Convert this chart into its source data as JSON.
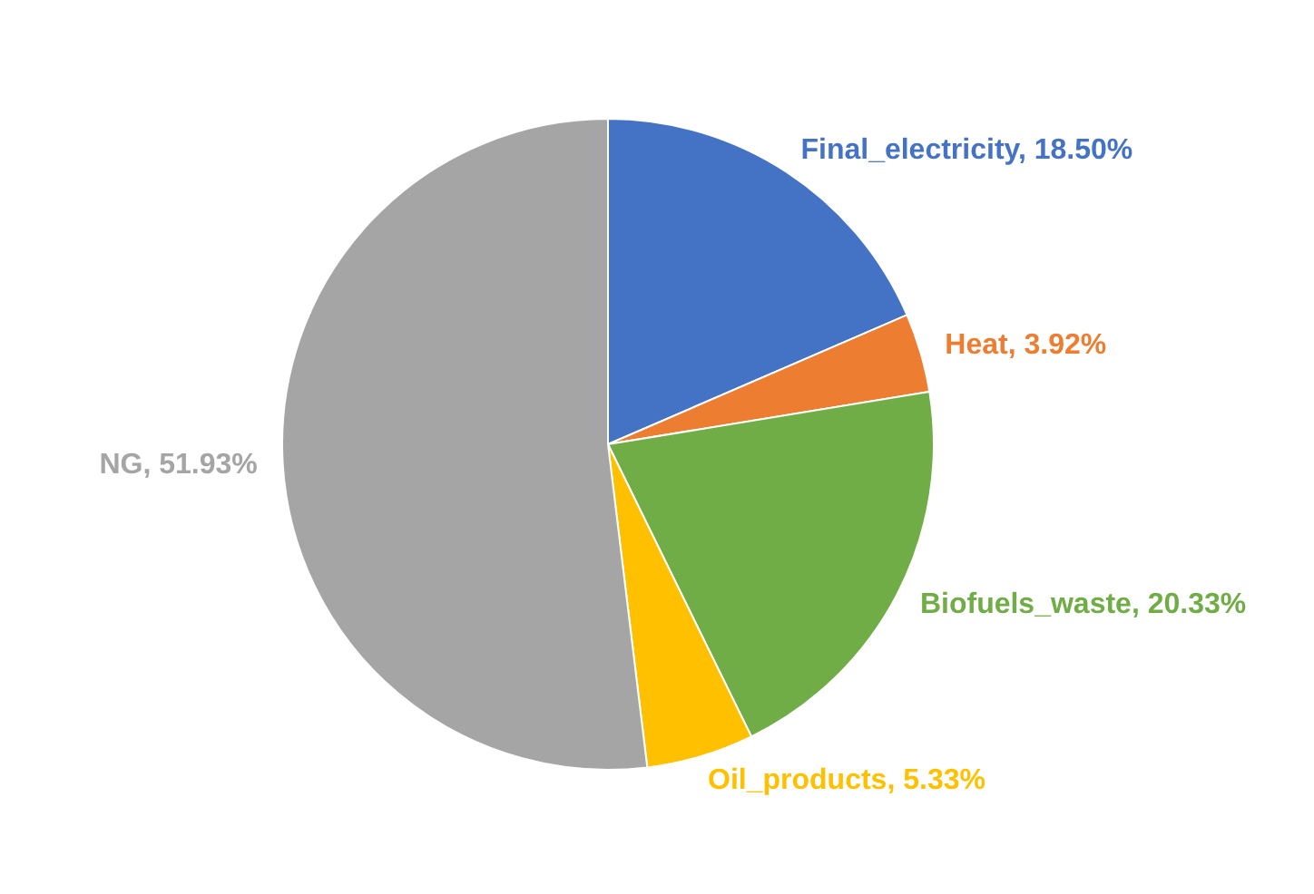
{
  "chart_data": {
    "type": "pie",
    "categories": [
      "Final_electricity",
      "Heat",
      "Biofuels_waste",
      "Oil_products",
      "NG"
    ],
    "values": [
      18.5,
      3.92,
      20.33,
      5.33,
      51.93
    ],
    "value_labels": [
      "18.50%",
      "3.92%",
      "20.33%",
      "5.33%",
      "51.93%"
    ],
    "colors": [
      "#4472c4",
      "#ed7d31",
      "#70ad47",
      "#ffc000",
      "#a5a5a5"
    ],
    "legend": false
  }
}
